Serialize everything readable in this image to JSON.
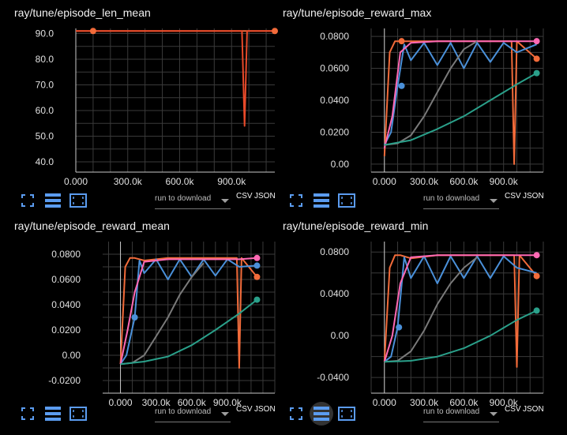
{
  "colors": {
    "background": "#000000",
    "grid": "#3a3a3a",
    "axis": "#c8c8c8",
    "icon_blue": "#5b9cf0",
    "series": {
      "orange": "#f26b3a",
      "blue": "#4a90d9",
      "pink": "#ff69b4",
      "gray": "#7a7a7a",
      "teal": "#2aa08a",
      "red": "#e84a2a"
    }
  },
  "toolbar": {
    "icons": [
      "fullscreen-icon",
      "data-table-icon",
      "fit-domain-icon"
    ],
    "run_to_download": "run to download",
    "csv": "CSV",
    "json": "JSON"
  },
  "cards": [
    {
      "title": "ray/tune/episode_len_mean",
      "chart_data": {
        "type": "line",
        "title": "ray/tune/episode_len_mean",
        "xlabel": "",
        "ylabel": "",
        "x_ticks": [
          "0.000",
          "300.0k",
          "600.0k",
          "900.0k"
        ],
        "y_ticks": [
          "40.0",
          "50.0",
          "60.0",
          "70.0",
          "80.0",
          "90.0"
        ],
        "xlim": [
          0,
          1150000
        ],
        "ylim": [
          36,
          92
        ],
        "grid": true,
        "series": [
          {
            "color": "#f26b3a",
            "x": [
              0,
              100000,
              300000,
              600000,
              900000,
              1150000
            ],
            "y": [
              91,
              91,
              91,
              91,
              91,
              91
            ]
          },
          {
            "color": "#e84a2a",
            "x": [
              0,
              960000,
              975000,
              990000,
              1005000,
              1150000
            ],
            "y": [
              91,
              91,
              54,
              91,
              91,
              91
            ]
          }
        ],
        "markers": [
          {
            "x": 100000,
            "y": 91,
            "color": "#f26b3a"
          },
          {
            "x": 1150000,
            "y": 91,
            "color": "#f26b3a"
          }
        ]
      }
    },
    {
      "title": "ray/tune/episode_reward_max",
      "chart_data": {
        "type": "line",
        "title": "ray/tune/episode_reward_max",
        "xlabel": "",
        "ylabel": "",
        "x_ticks": [
          "0.000",
          "300.0k",
          "600.0k",
          "900.0k"
        ],
        "y_ticks": [
          "0.00",
          "0.0200",
          "0.0400",
          "0.0600",
          "0.0800"
        ],
        "xlim": [
          -100000,
          1200000
        ],
        "ylim": [
          -0.005,
          0.085
        ],
        "grid": true,
        "series": [
          {
            "color": "#f26b3a",
            "x": [
              0,
              40000,
              80000,
              120000,
              200000,
              400000,
              600000,
              800000,
              960000,
              980000,
              1000000,
              1150000
            ],
            "y": [
              0.005,
              0.07,
              0.077,
              0.077,
              0.077,
              0.077,
              0.077,
              0.077,
              0.077,
              0.0,
              0.077,
              0.066
            ]
          },
          {
            "color": "#4a90d9",
            "x": [
              0,
              50000,
              100000,
              150000,
              200000,
              300000,
              400000,
              500000,
              600000,
              700000,
              800000,
              900000,
              1000000,
              1150000
            ],
            "y": [
              0.012,
              0.02,
              0.049,
              0.075,
              0.065,
              0.076,
              0.062,
              0.076,
              0.06,
              0.076,
              0.064,
              0.076,
              0.07,
              0.075
            ]
          },
          {
            "color": "#ff69b4",
            "x": [
              0,
              60000,
              120000,
              200000,
              400000,
              600000,
              800000,
              1000000,
              1150000
            ],
            "y": [
              0.01,
              0.03,
              0.07,
              0.076,
              0.077,
              0.077,
              0.077,
              0.077,
              0.077
            ]
          },
          {
            "color": "#7a7a7a",
            "x": [
              0,
              100000,
              200000,
              300000,
              400000,
              500000,
              600000,
              700000
            ],
            "y": [
              0.012,
              0.013,
              0.018,
              0.03,
              0.045,
              0.06,
              0.072,
              0.077
            ]
          },
          {
            "color": "#2aa08a",
            "x": [
              0,
              200000,
              400000,
              600000,
              800000,
              1000000,
              1150000
            ],
            "y": [
              0.012,
              0.015,
              0.022,
              0.03,
              0.04,
              0.05,
              0.057
            ]
          }
        ],
        "markers": [
          {
            "x": 130000,
            "y": 0.049,
            "color": "#4a90d9"
          },
          {
            "x": 130000,
            "y": 0.077,
            "color": "#f26b3a"
          },
          {
            "x": 1150000,
            "y": 0.077,
            "color": "#ff69b4"
          },
          {
            "x": 1150000,
            "y": 0.066,
            "color": "#f26b3a"
          },
          {
            "x": 1150000,
            "y": 0.057,
            "color": "#2aa08a"
          }
        ]
      }
    },
    {
      "title": "ray/tune/episode_reward_mean",
      "chart_data": {
        "type": "line",
        "title": "ray/tune/episode_reward_mean",
        "xlabel": "",
        "ylabel": "",
        "x_ticks": [
          "0.000",
          "300.0k",
          "600.0k",
          "900.0k"
        ],
        "y_ticks": [
          "-0.0200",
          "0.00",
          "0.0200",
          "0.0400",
          "0.0600",
          "0.0800"
        ],
        "xlim": [
          -150000,
          1300000
        ],
        "ylim": [
          -0.03,
          0.09
        ],
        "grid": true,
        "series": [
          {
            "color": "#f26b3a",
            "x": [
              0,
              40000,
              80000,
              120000,
              200000,
              400000,
              600000,
              800000,
              980000,
              1000000,
              1020000,
              1150000
            ],
            "y": [
              -0.007,
              0.07,
              0.077,
              0.077,
              0.075,
              0.077,
              0.077,
              0.077,
              0.077,
              -0.01,
              0.077,
              0.062
            ]
          },
          {
            "color": "#4a90d9",
            "x": [
              0,
              50000,
              120000,
              160000,
              200000,
              300000,
              400000,
              500000,
              600000,
              700000,
              800000,
              900000,
              1000000,
              1150000
            ],
            "y": [
              -0.007,
              0.0,
              0.03,
              0.075,
              0.065,
              0.076,
              0.06,
              0.076,
              0.062,
              0.076,
              0.063,
              0.076,
              0.07,
              0.071
            ]
          },
          {
            "color": "#ff69b4",
            "x": [
              0,
              60000,
              120000,
              200000,
              400000,
              600000,
              800000,
              1000000,
              1150000
            ],
            "y": [
              -0.007,
              0.02,
              0.05,
              0.074,
              0.076,
              0.076,
              0.076,
              0.076,
              0.077
            ]
          },
          {
            "color": "#7a7a7a",
            "x": [
              0,
              100000,
              200000,
              300000,
              400000,
              500000,
              600000,
              700000
            ],
            "y": [
              -0.007,
              -0.006,
              0.0,
              0.015,
              0.03,
              0.048,
              0.062,
              0.073
            ]
          },
          {
            "color": "#2aa08a",
            "x": [
              0,
              200000,
              400000,
              600000,
              800000,
              1000000,
              1150000
            ],
            "y": [
              -0.007,
              -0.005,
              -0.001,
              0.008,
              0.02,
              0.033,
              0.044
            ]
          }
        ],
        "markers": [
          {
            "x": 120000,
            "y": 0.03,
            "color": "#4a90d9"
          },
          {
            "x": 1150000,
            "y": 0.077,
            "color": "#ff69b4"
          },
          {
            "x": 1150000,
            "y": 0.071,
            "color": "#4a90d9"
          },
          {
            "x": 1150000,
            "y": 0.062,
            "color": "#f26b3a"
          },
          {
            "x": 1150000,
            "y": 0.044,
            "color": "#2aa08a"
          }
        ]
      }
    },
    {
      "title": "ray/tune/episode_reward_min",
      "chart_data": {
        "type": "line",
        "title": "ray/tune/episode_reward_min",
        "xlabel": "",
        "ylabel": "",
        "x_ticks": [
          "0.000",
          "300.0k",
          "600.0k",
          "900.0k"
        ],
        "y_ticks": [
          "-0.0400",
          "0.00",
          "0.0400",
          "0.0800"
        ],
        "xlim": [
          -100000,
          1200000
        ],
        "ylim": [
          -0.055,
          0.09
        ],
        "grid": true,
        "series": [
          {
            "color": "#f26b3a",
            "x": [
              0,
              40000,
              80000,
              120000,
              200000,
              400000,
              600000,
              800000,
              980000,
              1000000,
              1020000,
              1150000
            ],
            "y": [
              -0.025,
              0.065,
              0.077,
              0.077,
              0.074,
              0.077,
              0.077,
              0.077,
              0.077,
              -0.03,
              0.077,
              0.057
            ]
          },
          {
            "color": "#4a90d9",
            "x": [
              0,
              50000,
              100000,
              150000,
              200000,
              300000,
              400000,
              500000,
              600000,
              700000,
              800000,
              900000,
              1000000,
              1150000
            ],
            "y": [
              -0.025,
              -0.02,
              0.008,
              0.075,
              0.055,
              0.076,
              0.05,
              0.076,
              0.055,
              0.076,
              0.055,
              0.076,
              0.065,
              0.06
            ]
          },
          {
            "color": "#ff69b4",
            "x": [
              0,
              60000,
              120000,
              200000,
              400000,
              600000,
              800000,
              1000000,
              1150000
            ],
            "y": [
              -0.025,
              0.0,
              0.05,
              0.075,
              0.077,
              0.077,
              0.077,
              0.077,
              0.077
            ]
          },
          {
            "color": "#7a7a7a",
            "x": [
              0,
              100000,
              200000,
              300000,
              400000,
              500000,
              600000,
              700000
            ],
            "y": [
              -0.025,
              -0.024,
              -0.015,
              0.005,
              0.03,
              0.05,
              0.065,
              0.075
            ]
          },
          {
            "color": "#2aa08a",
            "x": [
              0,
              200000,
              400000,
              600000,
              800000,
              1000000,
              1150000
            ],
            "y": [
              -0.025,
              -0.024,
              -0.02,
              -0.012,
              0.0,
              0.015,
              0.024
            ]
          }
        ],
        "markers": [
          {
            "x": 110000,
            "y": 0.008,
            "color": "#4a90d9"
          },
          {
            "x": 1150000,
            "y": 0.077,
            "color": "#ff69b4"
          },
          {
            "x": 1150000,
            "y": 0.057,
            "color": "#f26b3a"
          },
          {
            "x": 1150000,
            "y": 0.024,
            "color": "#2aa08a"
          }
        ]
      }
    }
  ]
}
